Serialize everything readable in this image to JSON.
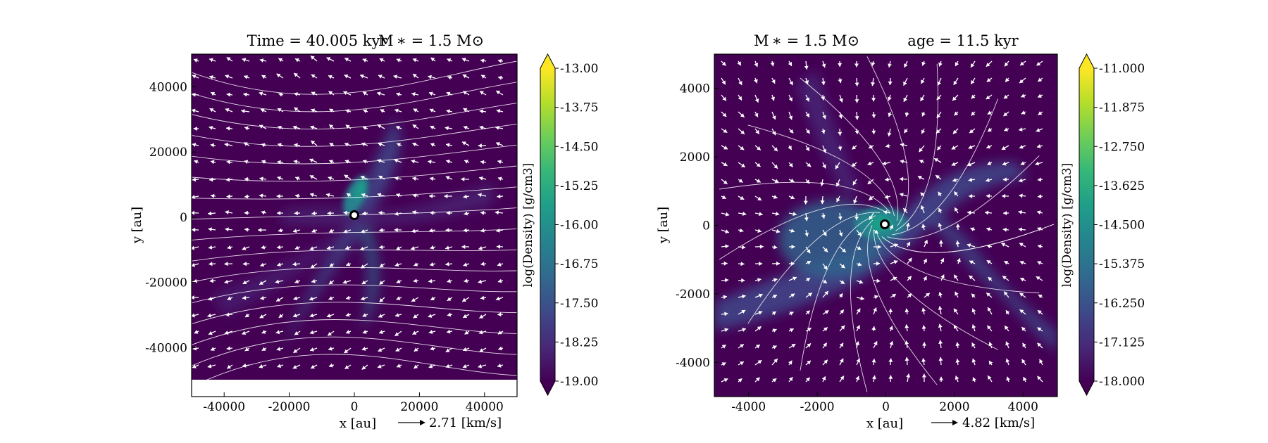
{
  "chart_data": [
    {
      "type": "heatmap",
      "title_left": "Time = 40.005 kyr",
      "title_right": "M ∗ = 1.5 M⊙",
      "xlabel": "x [au]",
      "ylabel": "y [au]",
      "xlim": [
        -50000,
        50000
      ],
      "ylim": [
        -55000,
        50000
      ],
      "xticks": [
        -40000,
        -20000,
        0,
        20000,
        40000
      ],
      "yticks": [
        40000,
        20000,
        0,
        -20000,
        -40000
      ],
      "colorbar": {
        "label": "log(Density) [g/cm3]",
        "range": [
          -19.0,
          -13.0
        ],
        "ticks": [
          "-13.00",
          "-13.75",
          "-14.50",
          "-15.25",
          "-16.00",
          "-16.75",
          "-17.50",
          "-18.25",
          "-19.00"
        ],
        "colormap": "viridis"
      },
      "velocity_key": {
        "label": "2.71 [km/s]",
        "value": 2.71
      },
      "star": {
        "x": 0,
        "y": 0
      }
    },
    {
      "type": "heatmap",
      "title_left": "M ∗ = 1.5 M⊙",
      "title_right": "age = 11.5 kyr",
      "xlabel": "x [au]",
      "ylabel": "y [au]",
      "xlim": [
        -5000,
        5000
      ],
      "ylim": [
        -5000,
        5000
      ],
      "xticks": [
        -4000,
        -2000,
        0,
        2000,
        4000
      ],
      "yticks": [
        4000,
        2000,
        0,
        -2000,
        -4000
      ],
      "colorbar": {
        "label": "log(Density) [g/cm3]",
        "range": [
          -18.0,
          -11.0
        ],
        "ticks": [
          "-11.000",
          "-11.875",
          "-12.750",
          "-13.625",
          "-14.500",
          "-15.375",
          "-16.250",
          "-17.125",
          "-18.000"
        ],
        "colormap": "viridis"
      },
      "velocity_key": {
        "label": "4.82 [km/s]",
        "value": 4.82
      },
      "star": {
        "x": 0,
        "y": 0
      }
    }
  ],
  "colors": {
    "background": "#440154",
    "cmap": [
      "#440154",
      "#482878",
      "#3e4989",
      "#31688e",
      "#26828e",
      "#1f9e89",
      "#35b779",
      "#6ece58",
      "#b5de2b",
      "#fde725"
    ],
    "vectors": "#ffffff"
  }
}
